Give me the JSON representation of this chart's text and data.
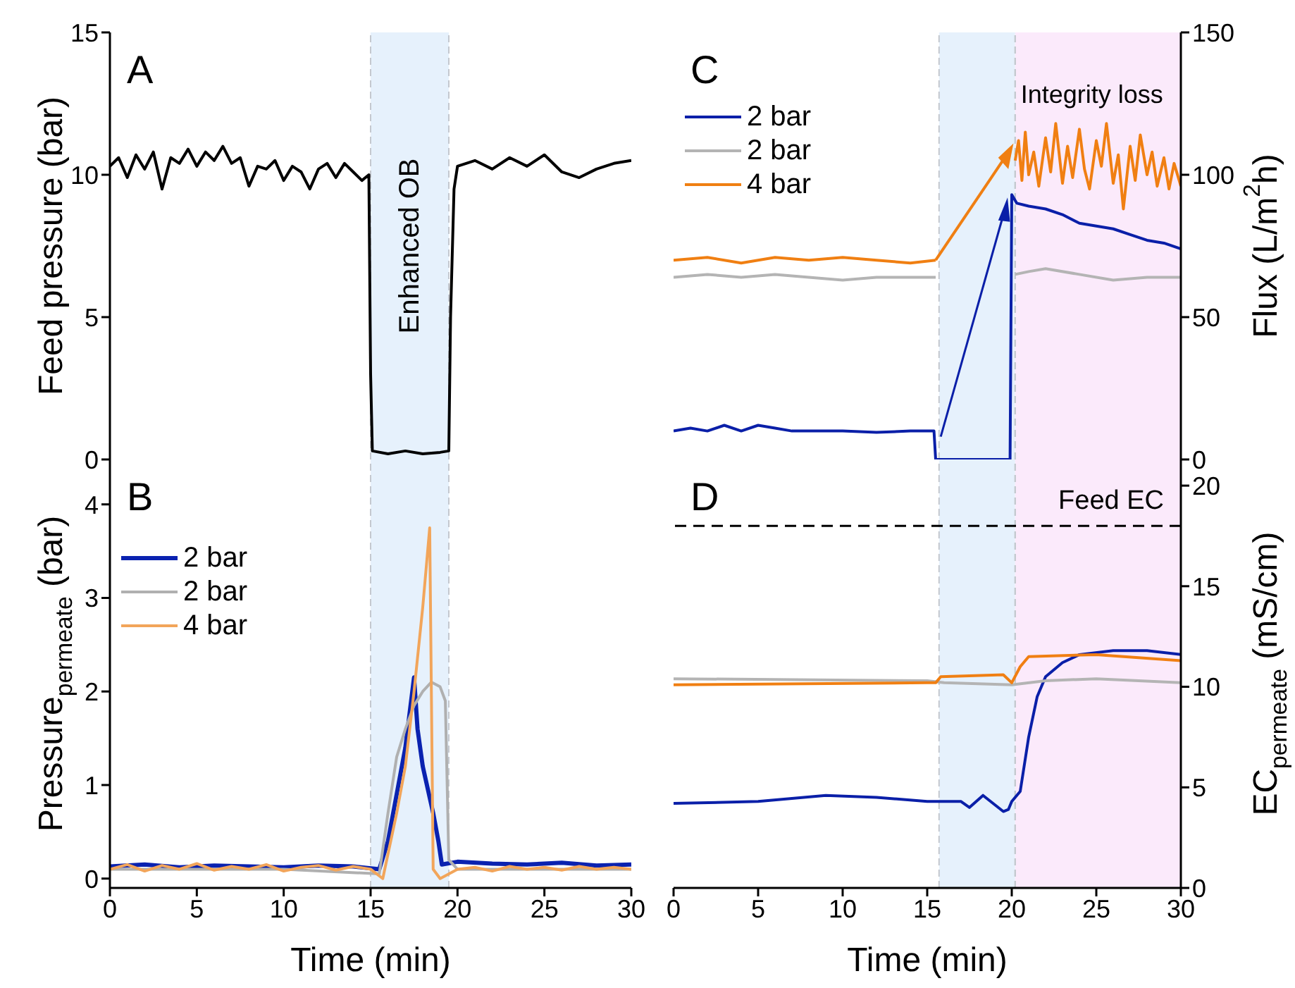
{
  "chart_data": [
    {
      "type": "line",
      "ylabel": "Feed pressure (bar)",
      "annotations": [
        "A"
      ],
      "xlim": [
        0,
        30
      ],
      "xticks": [
        0,
        5,
        10,
        15,
        20,
        25,
        30
      ],
      "ylim": [
        0,
        15
      ],
      "yticks": [
        0,
        5,
        10,
        15
      ],
      "tick_labels": "y",
      "bands": [
        {
          "axis": "x",
          "from": 15,
          "to": 19.5,
          "label": "Enhanced OB",
          "color": "#e6f1fc"
        }
      ],
      "series": [
        {
          "color": "#000000",
          "x": [
            0,
            0.5,
            1,
            1.5,
            2,
            2.5,
            3,
            3.5,
            4,
            4.5,
            5,
            5.5,
            6,
            6.5,
            7,
            7.5,
            8,
            8.5,
            9,
            9.5,
            10,
            10.5,
            11,
            11.5,
            12,
            12.5,
            13,
            13.5,
            14,
            14.5,
            14.9,
            15,
            15.1,
            16,
            17,
            18,
            19,
            19.5,
            19.6,
            19.8,
            20,
            21,
            22,
            23,
            24,
            25,
            26,
            27,
            28,
            29,
            30
          ],
          "values": [
            10.3,
            10.6,
            9.9,
            10.7,
            10.2,
            10.8,
            9.5,
            10.6,
            10.4,
            10.9,
            10.3,
            10.8,
            10.5,
            11,
            10.4,
            10.6,
            9.6,
            10.3,
            10.2,
            10.5,
            9.8,
            10.3,
            10.1,
            9.5,
            10.2,
            10.4,
            9.9,
            10.4,
            10.1,
            9.8,
            10,
            3,
            0.3,
            0.2,
            0.3,
            0.2,
            0.25,
            0.3,
            5,
            9.5,
            10.3,
            10.5,
            10.2,
            10.6,
            10.3,
            10.7,
            10.1,
            9.9,
            10.2,
            10.4,
            10.5
          ]
        }
      ]
    },
    {
      "type": "line",
      "xlabel": "Time (min)",
      "ylabel": "Pressure$_{permeate}$ (bar)",
      "annotations": [
        "B"
      ],
      "xlim": [
        0,
        30
      ],
      "xticks": [
        0,
        5,
        10,
        15,
        20,
        25,
        30
      ],
      "ylim": [
        -0.1,
        4.48
      ],
      "yticks": [
        0,
        1,
        2,
        3,
        4
      ],
      "legend": "top left",
      "bands": [
        {
          "axis": "x",
          "from": 15,
          "to": 19.5,
          "color": "#e6f1fc"
        }
      ],
      "series": [
        {
          "name": "2 bar",
          "color": "#0a22b0",
          "x": [
            0,
            2,
            4,
            6,
            8,
            10,
            12,
            14,
            15.5,
            16,
            16.5,
            17,
            17.5,
            17.7,
            18,
            18.3,
            18.6,
            18.9,
            19.1,
            20,
            22,
            24,
            26,
            28,
            30
          ],
          "values": [
            0.13,
            0.15,
            0.12,
            0.14,
            0.13,
            0.12,
            0.14,
            0.13,
            0.1,
            0.4,
            0.9,
            1.4,
            2.15,
            1.6,
            1.2,
            0.95,
            0.7,
            0.4,
            0.15,
            0.18,
            0.16,
            0.15,
            0.17,
            0.14,
            0.15
          ]
        },
        {
          "name": "2 bar",
          "color": "#b0b0b0",
          "x": [
            0,
            5,
            10,
            15.5,
            16,
            16.5,
            17,
            17.5,
            18,
            18.5,
            19,
            19.3,
            19.5,
            20,
            25,
            30
          ],
          "values": [
            0.1,
            0.1,
            0.1,
            0.05,
            0.7,
            1.3,
            1.6,
            1.85,
            2,
            2.1,
            2.05,
            1.9,
            0.2,
            0.1,
            0.1,
            0.1
          ]
        },
        {
          "name": "4 bar",
          "color": "#f2a55a",
          "x": [
            0,
            1,
            2,
            3,
            4,
            5,
            6,
            7,
            8,
            9,
            10,
            11,
            12,
            13,
            14,
            15,
            15.7,
            16.5,
            17,
            17.5,
            18,
            18.4,
            18.6,
            19,
            20,
            21,
            22,
            23,
            24,
            25,
            26,
            27,
            28,
            29,
            30
          ],
          "values": [
            0.1,
            0.15,
            0.08,
            0.14,
            0.1,
            0.16,
            0.09,
            0.13,
            0.1,
            0.15,
            0.08,
            0.12,
            0.14,
            0.09,
            0.13,
            0.1,
            0,
            0.7,
            1.2,
            2,
            2.9,
            3.75,
            0.1,
            0,
            0.1,
            0.12,
            0.08,
            0.13,
            0.1,
            0.12,
            0.09,
            0.13,
            0.1,
            0.12,
            0.1
          ]
        }
      ]
    },
    {
      "type": "line",
      "ylabel": "Flux (L/m$^{2}$h)",
      "annotations": [
        "C"
      ],
      "xlim": [
        0,
        30
      ],
      "xticks": [
        0,
        5,
        10,
        15,
        20,
        25,
        30
      ],
      "ylim": [
        0,
        150
      ],
      "yticks": [
        0,
        50,
        100,
        150
      ],
      "tick_labels": "y",
      "legend": "top left",
      "bands": [
        {
          "axis": "x",
          "from": 15.7,
          "to": 20.2,
          "color": "#e6f1fc"
        },
        {
          "axis": "x",
          "from": 20.2,
          "to": 30,
          "label": "Integrity loss",
          "color": "#fbeafb"
        }
      ],
      "series": [
        {
          "name": "2 bar",
          "color": "#0a1fa8",
          "x": [
            0,
            1,
            2,
            3,
            4,
            5,
            6,
            7,
            8,
            10,
            12,
            14,
            15.4,
            15.5,
            18,
            19.9,
            20,
            20.3,
            21,
            22,
            23,
            24,
            25,
            26,
            27,
            28,
            29,
            30
          ],
          "values": [
            10,
            11,
            10,
            12,
            10,
            12,
            11,
            10,
            10,
            10,
            9.5,
            10,
            10,
            0,
            0,
            0,
            93,
            90,
            89,
            88,
            86,
            83,
            82,
            81,
            79,
            77,
            76,
            74
          ]
        },
        {
          "name": "2 bar",
          "color": "#b4b4b4",
          "x": [
            0,
            2,
            4,
            6,
            8,
            10,
            12,
            14,
            15.5,
            17,
            20.2,
            21,
            22,
            24,
            26,
            28,
            30
          ],
          "values": [
            64,
            65,
            64,
            65,
            64,
            63,
            64,
            64,
            64,
            null,
            65,
            66,
            67,
            65,
            63,
            64,
            64
          ]
        },
        {
          "name": "4 bar",
          "color": "#f07f12",
          "x": [
            0,
            2,
            4,
            6,
            8,
            10,
            12,
            14,
            15.5,
            17,
            20.2,
            20.4,
            20.6,
            20.8,
            21,
            21.3,
            21.6,
            22,
            22.3,
            22.6,
            23,
            23.3,
            23.6,
            24,
            24.3,
            24.6,
            25,
            25.3,
            25.6,
            26,
            26.3,
            26.6,
            27,
            27.3,
            27.6,
            28,
            28.3,
            28.6,
            29,
            29.3,
            29.6,
            30
          ],
          "values": [
            70,
            71,
            69,
            71,
            70,
            71,
            70,
            69,
            70,
            null,
            105,
            112,
            98,
            115,
            100,
            108,
            96,
            113,
            101,
            118,
            97,
            110,
            99,
            116,
            102,
            95,
            112,
            103,
            118,
            97,
            107,
            88,
            110,
            98,
            114,
            100,
            108,
            96,
            106,
            95,
            104,
            96
          ]
        }
      ]
    },
    {
      "type": "line",
      "xlabel": "Time (min)",
      "ylabel": "EC$_{permeate}$ (mS/cm)",
      "annotations": [
        "D"
      ],
      "xlim": [
        0,
        30
      ],
      "xticks": [
        0,
        5,
        10,
        15,
        20,
        25,
        30
      ],
      "ylim": [
        0,
        21.3
      ],
      "yticks": [
        0,
        5,
        10,
        15,
        20
      ],
      "bands": [
        {
          "axis": "x",
          "from": 15.7,
          "to": 20.2,
          "color": "#e6f1fc"
        },
        {
          "axis": "x",
          "from": 20.2,
          "to": 30,
          "color": "#fbeafb"
        }
      ],
      "ref_lines": [
        {
          "axis": "y",
          "value": 18,
          "label": "Feed EC",
          "color": "#000000",
          "line_style": "dashed"
        }
      ],
      "series": [
        {
          "color": "#0a1fa8",
          "x": [
            0,
            5,
            9,
            12,
            15,
            17,
            17.5,
            18.3,
            19.5,
            19.8,
            20,
            20.5,
            21,
            21.5,
            22,
            23,
            24,
            26,
            28,
            30
          ],
          "values": [
            4.2,
            4.3,
            4.6,
            4.5,
            4.3,
            4.3,
            4,
            4.6,
            3.8,
            3.9,
            4.3,
            4.8,
            7.5,
            9.5,
            10.5,
            11.2,
            11.6,
            11.8,
            11.8,
            11.6
          ]
        },
        {
          "color": "#b4b4b4",
          "x": [
            0,
            15,
            16,
            20,
            22,
            25,
            30
          ],
          "values": [
            10.4,
            10.3,
            10.2,
            10.1,
            10.3,
            10.4,
            10.2
          ]
        },
        {
          "color": "#f07f12",
          "x": [
            0,
            15,
            15.5,
            15.8,
            19.5,
            20,
            20.5,
            21,
            25,
            30
          ],
          "values": [
            10.1,
            10.2,
            10.2,
            10.5,
            10.6,
            10.2,
            11,
            11.5,
            11.6,
            11.3
          ]
        }
      ]
    }
  ]
}
